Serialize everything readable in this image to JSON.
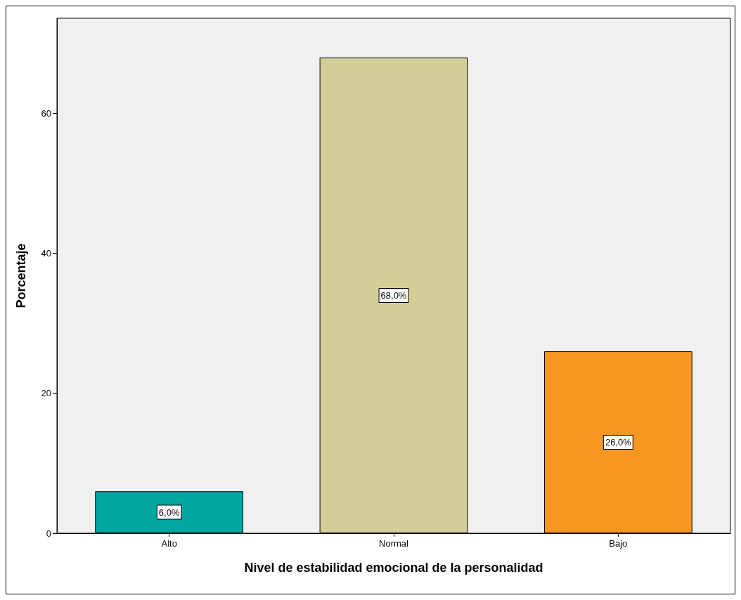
{
  "chart_data": {
    "type": "bar",
    "xlabel": "Nivel de estabilidad emocional de la personalidad",
    "ylabel": "Porcentaje",
    "categories": [
      "Alto",
      "Normal",
      "Bajo"
    ],
    "values": [
      6,
      68,
      26
    ],
    "colors": [
      "#00a6a0",
      "#d3ce97",
      "#f7971f"
    ],
    "value_labels": [
      "6,0%",
      "68,0%",
      "26,0%"
    ],
    "ylim": [
      0,
      73.6
    ],
    "yticks": [
      0,
      20,
      40,
      60
    ],
    "grid": false
  }
}
